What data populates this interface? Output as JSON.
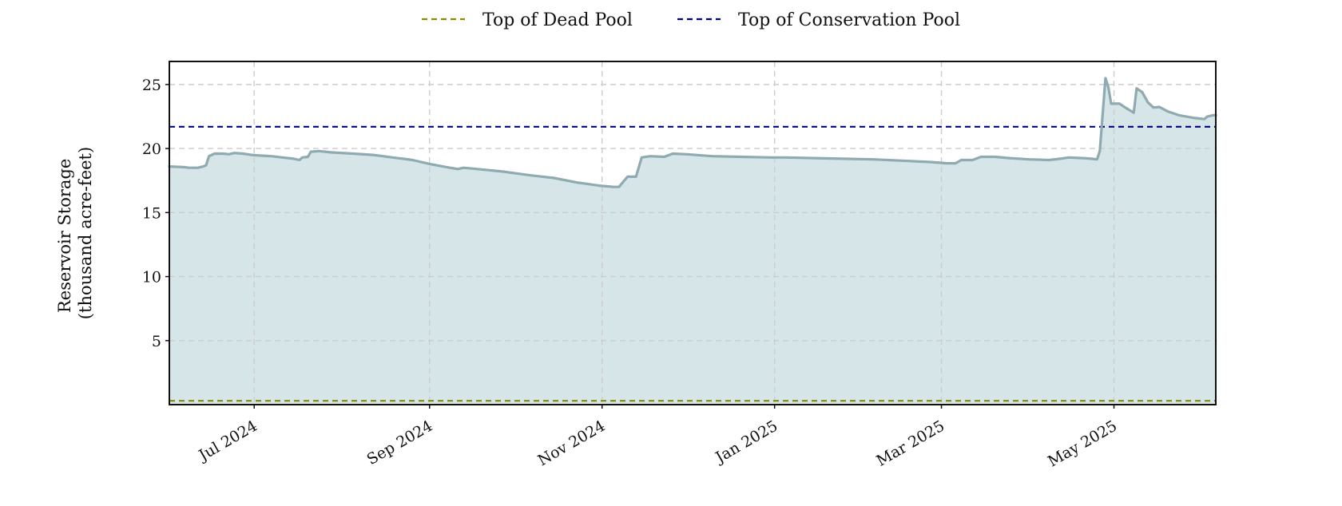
{
  "chart_data": {
    "type": "area",
    "title": "",
    "ylabel_lines": [
      "Reservoir Storage",
      "(thousand acre-feet)"
    ],
    "xlabel": "",
    "x_range": [
      "2024-06-01",
      "2025-06-06"
    ],
    "ylim": [
      0,
      26.8
    ],
    "grid": true,
    "legend_position": "top-center",
    "x_ticks": [
      {
        "date": "2024-07-01",
        "label": "Jul 2024"
      },
      {
        "date": "2024-09-01",
        "label": "Sep 2024"
      },
      {
        "date": "2024-11-01",
        "label": "Nov 2024"
      },
      {
        "date": "2025-01-01",
        "label": "Jan 2025"
      },
      {
        "date": "2025-03-01",
        "label": "Mar 2025"
      },
      {
        "date": "2025-05-01",
        "label": "May 2025"
      }
    ],
    "y_ticks": [
      {
        "value": 5,
        "label": "5"
      },
      {
        "value": 10,
        "label": "10"
      },
      {
        "value": 15,
        "label": "15"
      },
      {
        "value": 20,
        "label": "20"
      },
      {
        "value": 25,
        "label": "25"
      }
    ],
    "reference_lines": [
      {
        "name": "Top of Dead Pool",
        "value": 0.3,
        "color": "#8b8b00",
        "style": "dashed"
      },
      {
        "name": "Top of Conservation Pool",
        "value": 21.7,
        "color": "#000080",
        "style": "dashed"
      }
    ],
    "series": [
      {
        "line_color": "#8faab0",
        "fill_color": "#d6e6e8",
        "points": [
          [
            "2024-06-01",
            18.6
          ],
          [
            "2024-06-06",
            18.55
          ],
          [
            "2024-06-08",
            18.5
          ],
          [
            "2024-06-11",
            18.5
          ],
          [
            "2024-06-13",
            18.6
          ],
          [
            "2024-06-14",
            18.7
          ],
          [
            "2024-06-15",
            19.4
          ],
          [
            "2024-06-17",
            19.6
          ],
          [
            "2024-06-20",
            19.6
          ],
          [
            "2024-06-22",
            19.55
          ],
          [
            "2024-06-24",
            19.65
          ],
          [
            "2024-06-27",
            19.6
          ],
          [
            "2024-06-30",
            19.5
          ],
          [
            "2024-07-03",
            19.45
          ],
          [
            "2024-07-07",
            19.4
          ],
          [
            "2024-07-11",
            19.3
          ],
          [
            "2024-07-15",
            19.2
          ],
          [
            "2024-07-17",
            19.1
          ],
          [
            "2024-07-18",
            19.3
          ],
          [
            "2024-07-20",
            19.35
          ],
          [
            "2024-07-21",
            19.75
          ],
          [
            "2024-07-24",
            19.8
          ],
          [
            "2024-07-28",
            19.7
          ],
          [
            "2024-08-05",
            19.6
          ],
          [
            "2024-08-12",
            19.5
          ],
          [
            "2024-08-19",
            19.3
          ],
          [
            "2024-08-26",
            19.1
          ],
          [
            "2024-09-01",
            18.8
          ],
          [
            "2024-09-07",
            18.55
          ],
          [
            "2024-09-11",
            18.4
          ],
          [
            "2024-09-13",
            18.5
          ],
          [
            "2024-09-18",
            18.4
          ],
          [
            "2024-09-27",
            18.2
          ],
          [
            "2024-10-07",
            17.9
          ],
          [
            "2024-10-15",
            17.7
          ],
          [
            "2024-10-23",
            17.35
          ],
          [
            "2024-10-31",
            17.1
          ],
          [
            "2024-11-05",
            17.0
          ],
          [
            "2024-11-07",
            17.0
          ],
          [
            "2024-11-10",
            17.8
          ],
          [
            "2024-11-13",
            17.8
          ],
          [
            "2024-11-15",
            19.3
          ],
          [
            "2024-11-18",
            19.4
          ],
          [
            "2024-11-23",
            19.35
          ],
          [
            "2024-11-26",
            19.6
          ],
          [
            "2024-12-01",
            19.55
          ],
          [
            "2024-12-10",
            19.4
          ],
          [
            "2024-12-20",
            19.35
          ],
          [
            "2024-12-31",
            19.3
          ],
          [
            "2025-01-05",
            19.3
          ],
          [
            "2025-01-15",
            19.25
          ],
          [
            "2025-01-25",
            19.2
          ],
          [
            "2025-02-05",
            19.15
          ],
          [
            "2025-02-15",
            19.05
          ],
          [
            "2025-02-25",
            18.95
          ],
          [
            "2025-03-03",
            18.85
          ],
          [
            "2025-03-06",
            18.85
          ],
          [
            "2025-03-08",
            19.1
          ],
          [
            "2025-03-12",
            19.1
          ],
          [
            "2025-03-15",
            19.35
          ],
          [
            "2025-03-20",
            19.35
          ],
          [
            "2025-03-25",
            19.25
          ],
          [
            "2025-04-01",
            19.15
          ],
          [
            "2025-04-08",
            19.1
          ],
          [
            "2025-04-12",
            19.2
          ],
          [
            "2025-04-15",
            19.3
          ],
          [
            "2025-04-20",
            19.25
          ],
          [
            "2025-04-23",
            19.2
          ],
          [
            "2025-04-25",
            19.15
          ],
          [
            "2025-04-26",
            19.8
          ],
          [
            "2025-04-28",
            25.5
          ],
          [
            "2025-04-29",
            24.8
          ],
          [
            "2025-04-30",
            23.5
          ],
          [
            "2025-05-03",
            23.5
          ],
          [
            "2025-05-05",
            23.2
          ],
          [
            "2025-05-08",
            22.8
          ],
          [
            "2025-05-09",
            24.7
          ],
          [
            "2025-05-11",
            24.4
          ],
          [
            "2025-05-13",
            23.6
          ],
          [
            "2025-05-15",
            23.2
          ],
          [
            "2025-05-17",
            23.25
          ],
          [
            "2025-05-20",
            22.9
          ],
          [
            "2025-05-24",
            22.6
          ],
          [
            "2025-05-29",
            22.4
          ],
          [
            "2025-06-02",
            22.3
          ],
          [
            "2025-06-03",
            22.5
          ],
          [
            "2025-06-05",
            22.6
          ],
          [
            "2025-06-06",
            22.6
          ]
        ]
      }
    ]
  }
}
